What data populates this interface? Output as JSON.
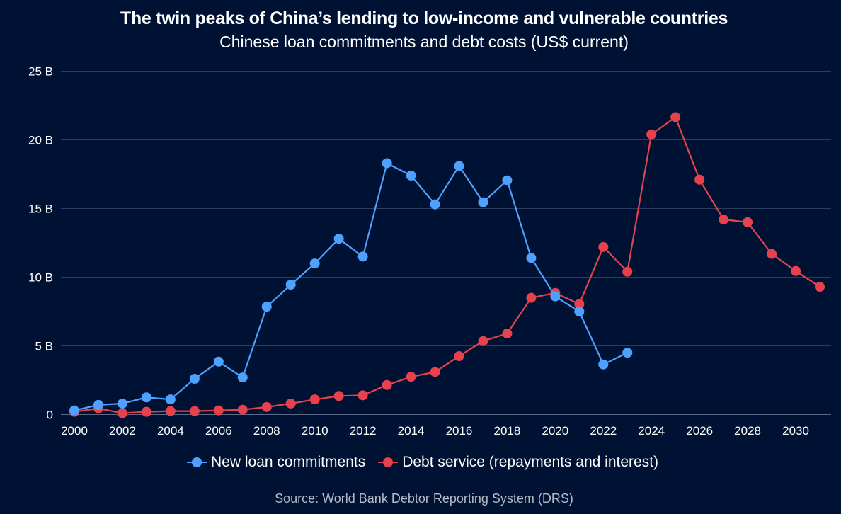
{
  "chart_data": {
    "type": "line",
    "title": "The twin peaks of China’s lending to low-income and vulnerable countries",
    "subtitle": "Chinese loan commitments and debt costs (US$ current)",
    "source": "Source: World Bank Debtor Reporting System (DRS)",
    "xlabel": "",
    "ylabel": "",
    "x_ticks": [
      "2000",
      "2002",
      "2004",
      "2006",
      "2008",
      "2010",
      "2012",
      "2014",
      "2016",
      "2018",
      "2020",
      "2022",
      "2024",
      "2026",
      "2028",
      "2030"
    ],
    "y_ticks": [
      "0",
      "5 B",
      "10 B",
      "15 B",
      "20 B",
      "25 B"
    ],
    "xlim": [
      2000,
      2031
    ],
    "ylim": [
      0,
      25
    ],
    "y_unit": "billion US$",
    "grid": "horizontal",
    "legend_position": "bottom-center",
    "background_color": "#001233",
    "series": [
      {
        "name": "New loan commitments",
        "color": "#4ea1ff",
        "x": [
          2000,
          2001,
          2002,
          2003,
          2004,
          2005,
          2006,
          2007,
          2008,
          2009,
          2010,
          2011,
          2012,
          2013,
          2014,
          2015,
          2016,
          2017,
          2018,
          2019,
          2020,
          2021,
          2022,
          2023
        ],
        "values": [
          0.3,
          0.7,
          0.8,
          1.25,
          1.1,
          2.6,
          3.85,
          2.7,
          7.85,
          9.45,
          11.0,
          12.8,
          11.5,
          18.3,
          17.4,
          15.3,
          18.1,
          15.45,
          17.05,
          11.4,
          8.6,
          7.5,
          3.65,
          4.5
        ]
      },
      {
        "name": "Debt service (repayments and interest)",
        "color": "#e8414e",
        "x": [
          2000,
          2001,
          2002,
          2003,
          2004,
          2005,
          2006,
          2007,
          2008,
          2009,
          2010,
          2011,
          2012,
          2013,
          2014,
          2015,
          2016,
          2017,
          2018,
          2019,
          2020,
          2021,
          2022,
          2023,
          2024,
          2025,
          2026,
          2027,
          2028,
          2029,
          2030,
          2031
        ],
        "values": [
          0.2,
          0.45,
          0.1,
          0.2,
          0.25,
          0.25,
          0.3,
          0.35,
          0.55,
          0.8,
          1.1,
          1.35,
          1.4,
          2.15,
          2.75,
          3.1,
          4.25,
          5.35,
          5.9,
          8.5,
          8.85,
          8.05,
          12.2,
          10.4,
          20.4,
          21.65,
          17.1,
          14.2,
          14.0,
          11.7,
          10.45,
          9.3
        ]
      }
    ]
  }
}
